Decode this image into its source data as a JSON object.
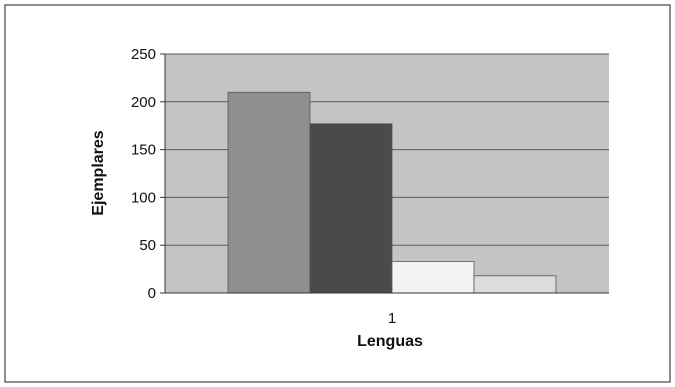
{
  "chart_data": {
    "type": "bar",
    "categories": [
      "1"
    ],
    "series": [
      {
        "values": [
          210
        ],
        "color": "#8f8f8f"
      },
      {
        "values": [
          177
        ],
        "color": "#4a4a4a"
      },
      {
        "values": [
          33
        ],
        "color": "#f2f2f2"
      },
      {
        "values": [
          18
        ],
        "color": "#dcdcdc"
      }
    ],
    "title": "",
    "xlabel": "Lenguas",
    "ylabel": "Ejemplares",
    "ylim": [
      0,
      250
    ],
    "yticks": [
      0,
      50,
      100,
      150,
      200,
      250
    ],
    "grid": true,
    "legend": "none"
  },
  "colors": {
    "plot_background": "#c4c4c4",
    "gridline": "#5a5a5a",
    "frame": "#444444"
  }
}
